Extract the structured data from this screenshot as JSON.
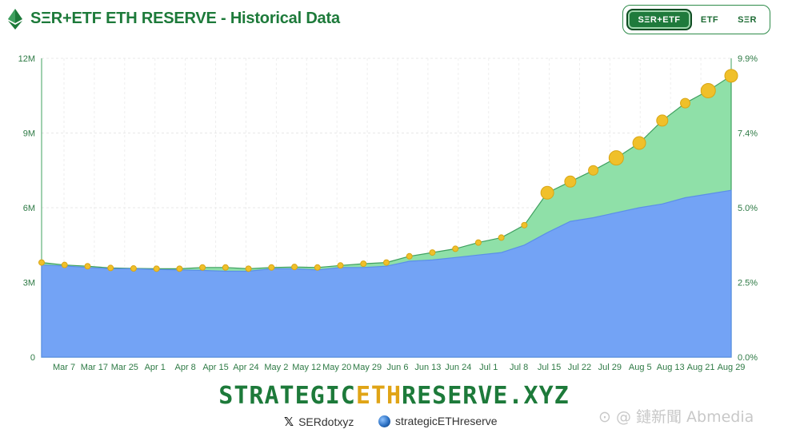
{
  "header": {
    "title": "SΞR+ETF ETH RESERVE - Historical Data",
    "toggle": [
      "SΞR+ETF",
      "ETF",
      "SΞR"
    ]
  },
  "chart_data": {
    "type": "area",
    "watermark": "STRATEGICETHRESERVE.XYZ",
    "x_ticks": [
      "Mar 7",
      "Mar 17",
      "Mar 25",
      "Apr 1",
      "Apr 8",
      "Apr 15",
      "Apr 24",
      "May 2",
      "May 12",
      "May 20",
      "May 29",
      "Jun 6",
      "Jun 13",
      "Jun 24",
      "Jul 1",
      "Jul 8",
      "Jul 15",
      "Jul 22",
      "Jul 29",
      "Aug 5",
      "Aug 13",
      "Aug 21",
      "Aug 29"
    ],
    "y_left_ticks": [
      "0",
      "3M",
      "6M",
      "9M",
      "12M"
    ],
    "y_right_ticks": [
      "0.0%",
      "2.5%",
      "5.0%",
      "7.4%",
      "9.9%"
    ],
    "ylim": [
      0,
      12000000
    ],
    "series": [
      {
        "values": [
          [
            0,
            3.7
          ],
          [
            1,
            3.66
          ],
          [
            2,
            3.6
          ],
          [
            3,
            3.55
          ],
          [
            4,
            3.55
          ],
          [
            5,
            3.52
          ],
          [
            6,
            3.5
          ],
          [
            7,
            3.48
          ],
          [
            8,
            3.45
          ],
          [
            9,
            3.45
          ],
          [
            10,
            3.55
          ],
          [
            11,
            3.55
          ],
          [
            12,
            3.5
          ],
          [
            13,
            3.6
          ],
          [
            14,
            3.6
          ],
          [
            15,
            3.65
          ],
          [
            16,
            3.85
          ],
          [
            17,
            3.9
          ],
          [
            18,
            4.0
          ],
          [
            19,
            4.1
          ],
          [
            20,
            4.2
          ],
          [
            21,
            4.5
          ],
          [
            22,
            5.0
          ],
          [
            23,
            5.45
          ],
          [
            24,
            5.6
          ],
          [
            25,
            5.8
          ],
          [
            26,
            6.0
          ],
          [
            27,
            6.15
          ],
          [
            28,
            6.4
          ],
          [
            29,
            6.55
          ],
          [
            30,
            6.7
          ]
        ]
      },
      {
        "values": [
          [
            0,
            3.8
          ],
          [
            1,
            3.7
          ],
          [
            2,
            3.65
          ],
          [
            3,
            3.58
          ],
          [
            4,
            3.56
          ],
          [
            5,
            3.55
          ],
          [
            6,
            3.55
          ],
          [
            7,
            3.6
          ],
          [
            8,
            3.6
          ],
          [
            9,
            3.55
          ],
          [
            10,
            3.6
          ],
          [
            11,
            3.62
          ],
          [
            12,
            3.6
          ],
          [
            13,
            3.68
          ],
          [
            14,
            3.75
          ],
          [
            15,
            3.8
          ],
          [
            16,
            4.05
          ],
          [
            17,
            4.2
          ],
          [
            18,
            4.35
          ],
          [
            19,
            4.6
          ],
          [
            20,
            4.8
          ],
          [
            21,
            5.3
          ],
          [
            22,
            6.6
          ],
          [
            23,
            7.05
          ],
          [
            24,
            7.5
          ],
          [
            25,
            8.0
          ],
          [
            26,
            8.6
          ],
          [
            27,
            9.5
          ],
          [
            28,
            10.2
          ],
          [
            29,
            10.7
          ],
          [
            30,
            11.3
          ]
        ]
      }
    ]
  },
  "brand": {
    "pre": "STRATEGIC",
    "eth": "ETH",
    "post": "RESERVE.XYZ"
  },
  "socials": {
    "x_handle": "SERdotxyz",
    "web_handle": "strategicETHreserve"
  },
  "watermark": "⊙ @ 鏈新聞 Abmedia",
  "colors": {
    "etf": "#73a3f5",
    "ser": "#8fe0a8",
    "accent": "#1d7a3a",
    "dot": "#f0c02a"
  }
}
